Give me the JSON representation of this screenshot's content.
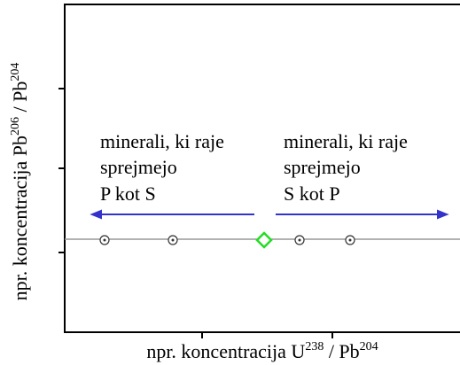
{
  "x_axis_label": {
    "text": "npr. koncentracija U",
    "sup1": "238",
    "mid": " / Pb",
    "sup2": "204"
  },
  "y_axis_label": {
    "text": "npr. koncentracija Pb",
    "sup1": "206",
    "mid": " / Pb",
    "sup2": "204"
  },
  "annotations": {
    "left": {
      "lines": [
        "minerali, ki raje",
        "sprejmejo",
        "P kot S"
      ]
    },
    "right": {
      "lines": [
        "minerali, ki raje",
        "sprejmejo",
        "S kot P"
      ]
    }
  }
}
